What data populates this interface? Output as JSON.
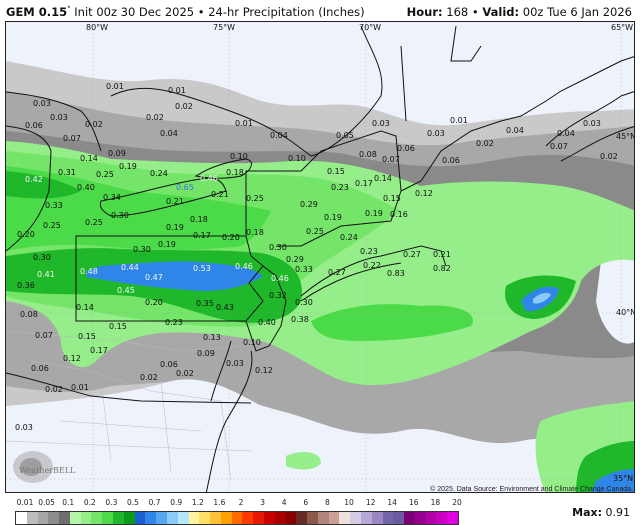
{
  "header": {
    "model": "GEM 0.15",
    "degree": "°",
    "init": "Init 00z 30 Dec 2025",
    "separator": "•",
    "product": "24-hr Precipitation (Inches)",
    "hour_label": "Hour:",
    "hour": "168",
    "valid_label": "Valid:",
    "valid": "00z Tue 6 Jan 2026"
  },
  "map": {
    "longitude_labels": [
      "80°W",
      "75°W",
      "70°W",
      "65°W"
    ],
    "latitude_labels": [
      "45°N",
      "40°N",
      "35°N"
    ],
    "attribution": "© 2025. Data Source: Environment and Climate Change Canada.",
    "logo": "WeatherBELL",
    "value_labels": [
      "0.01",
      "0.01",
      "0.02",
      "0.03",
      "0.03",
      "0.02",
      "0.06",
      "0.02",
      "0.01",
      "0.04",
      "0.07",
      "0.09",
      "0.14",
      "0.19",
      "0.25",
      "0.31",
      "0.24",
      "0.46",
      "0.18",
      "0.65",
      "0.42",
      "0.40",
      "0.34",
      "0.21",
      "0.25",
      "0.33",
      "0.21",
      "0.29",
      "0.30",
      "0.25",
      "0.25",
      "0.18",
      "0.19",
      "0.10",
      "0.10",
      "0.04",
      "0.03",
      "0.05",
      "0.01",
      "0.03",
      "0.02",
      "0.06",
      "0.08",
      "0.07",
      "0.06",
      "0.04",
      "0.04",
      "0.03",
      "0.07",
      "0.02",
      "0.15",
      "0.14",
      "0.23",
      "0.17",
      "0.12",
      "0.15",
      "0.19",
      "0.19",
      "0.16",
      "0.20",
      "0.19",
      "0.17",
      "0.20",
      "0.30",
      "0.30",
      "0.41",
      "0.36",
      "0.48",
      "0.44",
      "0.47",
      "0.53",
      "0.46",
      "0.45",
      "0.20",
      "0.14",
      "0.08",
      "0.35",
      "0.43",
      "0.23",
      "0.15",
      "0.07",
      "0.15",
      "0.13",
      "0.17",
      "0.12",
      "0.06",
      "0.09",
      "0.06",
      "0.03",
      "0.02",
      "0.02",
      "0.02",
      "0.01",
      "0.10",
      "0.12",
      "0.40",
      "0.30",
      "0.29",
      "0.46",
      "0.33",
      "0.32",
      "0.30",
      "0.38",
      "0.18",
      "0.25",
      "0.24",
      "0.23",
      "0.27",
      "0.22",
      "0.83",
      "0.27",
      "0.21",
      "0.82",
      "0.03"
    ]
  },
  "legend": {
    "labels": [
      "0.01",
      "0.05",
      "0.1",
      "0.2",
      "0.3",
      "0.5",
      "0.7",
      "0.9",
      "1.2",
      "1.6",
      "2",
      "3",
      "4",
      "6",
      "8",
      "10",
      "12",
      "14",
      "16",
      "18",
      "20"
    ],
    "colors": [
      "#ffffff",
      "#bdbdbd",
      "#a6a6a6",
      "#8c8c8c",
      "#6e6e6e",
      "#b4f5a8",
      "#96ee8a",
      "#74e568",
      "#4cdb48",
      "#1fb82a",
      "#0b9a1c",
      "#1b5fd0",
      "#2f86e8",
      "#57a6f2",
      "#8ccaf8",
      "#b5e8fb",
      "#fff5a0",
      "#ffe066",
      "#ffc03a",
      "#ffa000",
      "#ff6a00",
      "#ff3a00",
      "#e51a00",
      "#c80000",
      "#a80000",
      "#8a0000",
      "#6a2c22",
      "#8a5a4a",
      "#b08478",
      "#c8a098",
      "#efe0dc",
      "#d4cce4",
      "#b8a8d6",
      "#9a88c4",
      "#7464a8",
      "#6a5aa0",
      "#7a0078",
      "#980090",
      "#b000a8",
      "#c800c0",
      "#e000e0"
    ]
  },
  "max": {
    "label": "Max:",
    "value": "0.91"
  },
  "colors": {
    "no_precip": "#eef2fb",
    "land_border": "#111111",
    "county_border": "#bbbbbb"
  }
}
